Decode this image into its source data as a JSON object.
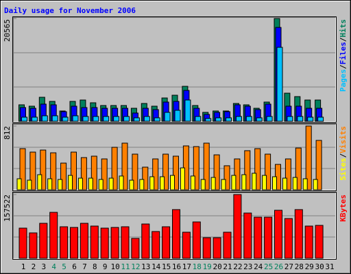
{
  "title": "Daily usage for November 2006",
  "legend_separator": "/",
  "chart_data": [
    {
      "type": "bar",
      "ylim": [
        0,
        20565
      ],
      "yticks": [
        20565
      ],
      "series": [
        {
          "name": "Hits",
          "color": "#00805c",
          "values": [
            3290,
            3016,
            4800,
            3976,
            2056,
            3976,
            4250,
            3700,
            3150,
            3150,
            3150,
            2600,
            3560,
            3016,
            4660,
            5210,
            6990,
            3150,
            1780,
            2056,
            2056,
            3560,
            3290,
            2600,
            3840,
            20565,
            5620,
            4935,
            4250,
            4250,
            null
          ]
        },
        {
          "name": "Files",
          "color": "#0000ff",
          "values": [
            2740,
            2600,
            3430,
            3290,
            1920,
            3016,
            2740,
            2740,
            2600,
            2600,
            2600,
            1645,
            2600,
            2330,
            3840,
            3976,
            6170,
            2600,
            1370,
            1780,
            1920,
            3290,
            3016,
            2330,
            3430,
            18780,
            3016,
            3016,
            2600,
            2600,
            null
          ]
        },
        {
          "name": "Pages",
          "color": "#00c0ff",
          "values": [
            820,
            820,
            1100,
            1100,
            820,
            1100,
            960,
            960,
            960,
            960,
            960,
            690,
            960,
            690,
            1780,
            2190,
            4250,
            960,
            550,
            690,
            690,
            960,
            960,
            690,
            960,
            14800,
            960,
            960,
            820,
            820,
            null
          ]
        }
      ]
    },
    {
      "type": "bar",
      "ylim": [
        0,
        812
      ],
      "yticks": [
        812
      ],
      "series": [
        {
          "name": "Visits",
          "color": "#ff8000",
          "values": [
            524,
            480,
            506,
            471,
            340,
            480,
            410,
            428,
            393,
            541,
            594,
            454,
            288,
            393,
            454,
            428,
            559,
            550,
            594,
            445,
            306,
            393,
            498,
            524,
            454,
            323,
            393,
            532,
            812,
            629,
            null
          ]
        },
        {
          "name": "Sites",
          "color": "#ffff00",
          "values": [
            140,
            122,
            192,
            140,
            131,
            183,
            148,
            148,
            131,
            148,
            175,
            122,
            131,
            166,
            166,
            183,
            279,
            175,
            131,
            157,
            131,
            183,
            192,
            210,
            183,
            166,
            148,
            157,
            140,
            131,
            null
          ]
        }
      ]
    },
    {
      "type": "bar",
      "ylim": [
        0,
        157522
      ],
      "yticks": [
        157522
      ],
      "categories": [
        "1",
        "2",
        "3",
        "4",
        "5",
        "6",
        "7",
        "8",
        "9",
        "10",
        "11",
        "12",
        "13",
        "14",
        "15",
        "16",
        "17",
        "18",
        "19",
        "20",
        "21",
        "22",
        "23",
        "24",
        "25",
        "26",
        "27",
        "28",
        "29",
        "30",
        "31"
      ],
      "category_colors": [
        "#000000",
        "#000000",
        "#000000",
        "#00805c",
        "#00805c",
        "#000000",
        "#000000",
        "#000000",
        "#000000",
        "#000000",
        "#00805c",
        "#00805c",
        "#000000",
        "#000000",
        "#000000",
        "#000000",
        "#000000",
        "#00805c",
        "#00805c",
        "#000000",
        "#000000",
        "#000000",
        "#000000",
        "#000000",
        "#00805c",
        "#00805c",
        "#000000",
        "#000000",
        "#000000",
        "#000000",
        "#000000"
      ],
      "series": [
        {
          "name": "KBytes",
          "color": "#ff0000",
          "values": [
            74500,
            62700,
            86400,
            113500,
            77900,
            76200,
            86400,
            79600,
            74500,
            76200,
            77900,
            49100,
            84700,
            66100,
            77900,
            120300,
            64400,
            89800,
            50800,
            50800,
            64400,
            157522,
            111800,
            101600,
            101600,
            118600,
            98200,
            120300,
            79600,
            81300,
            null
          ]
        }
      ]
    }
  ]
}
